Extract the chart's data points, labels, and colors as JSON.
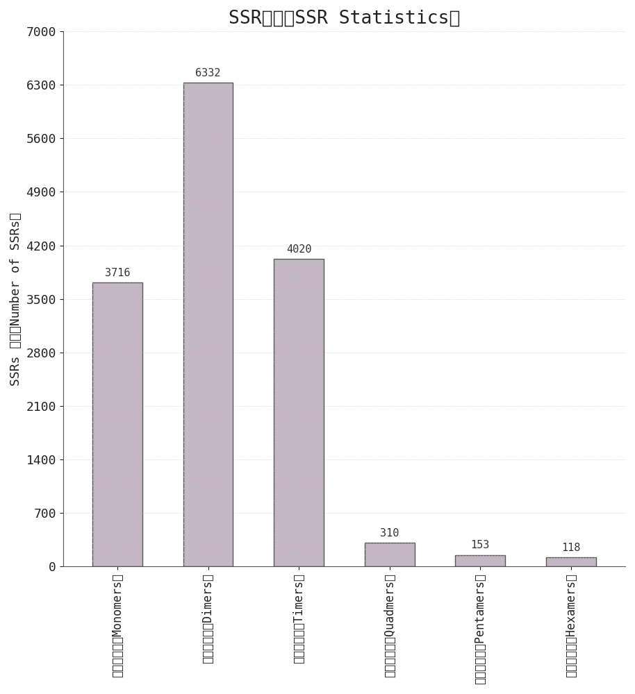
{
  "title": "SSR统计（SSR Statistics）",
  "ylabel": "SSRs 数量（Number of SSRs）",
  "categories": [
    "单拷基序列（Monomers）",
    "二拷基序列（Dimers）",
    "三拷基序列（Timers）",
    "四拷基序列（Quadmers）",
    "五拷基序列（Pentamers）",
    "六拷基序列（Hexamers）"
  ],
  "values": [
    3716,
    6332,
    4020,
    310,
    153,
    118
  ],
  "bar_color": "#c8b4c8",
  "bar_edge_color": "#555555",
  "ylim": [
    0,
    7000
  ],
  "yticks": [
    0,
    700,
    1400,
    2100,
    2800,
    3500,
    4200,
    4900,
    5600,
    6300,
    7000
  ],
  "title_fontsize": 19,
  "ylabel_fontsize": 13,
  "tick_fontsize": 13,
  "label_fontsize": 12,
  "value_label_fontsize": 11,
  "background_color": "#ffffff"
}
